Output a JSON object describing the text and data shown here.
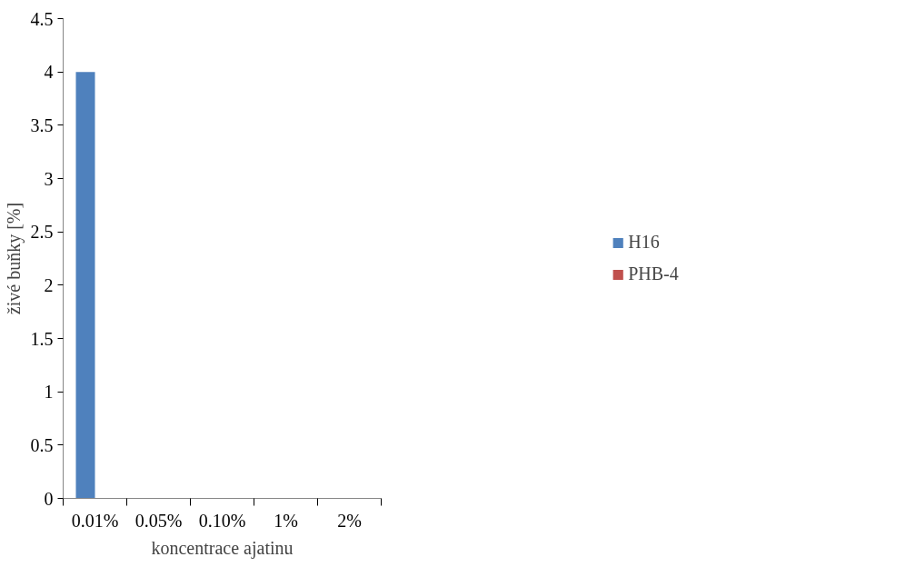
{
  "chart_data": {
    "type": "bar",
    "xlabel": "koncentrace ajatinu",
    "ylabel": "živé buňky [%]",
    "categories": [
      "0.01%",
      "0.05%",
      "0.10%",
      "1%",
      "2%"
    ],
    "series": [
      {
        "name": "H16",
        "color": "#4f81bd",
        "values": [
          4,
          0,
          0,
          0,
          0
        ]
      },
      {
        "name": "PHB-4",
        "color": "#c0504d",
        "values": [
          0,
          0,
          0,
          0,
          0
        ]
      }
    ],
    "ylim": [
      0,
      4.5
    ],
    "yticks": [
      0,
      0.5,
      1,
      1.5,
      2,
      2.5,
      3,
      3.5,
      4,
      4.5
    ],
    "grid": false,
    "legend": "right"
  }
}
